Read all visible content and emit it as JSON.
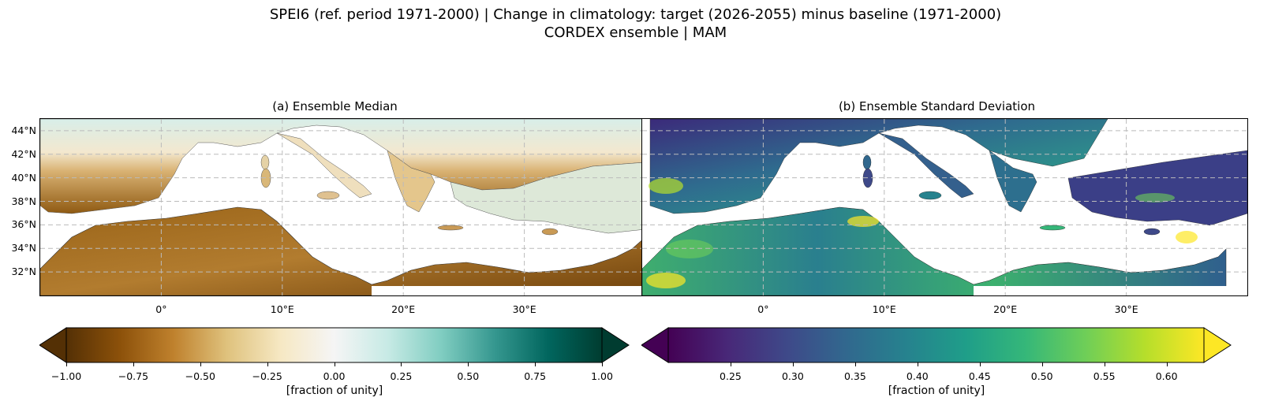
{
  "figure": {
    "title_line1": "SPEI6 (ref. period 1971-2000) | Change in climatology: target (2026-2055) minus baseline (1971-2000)",
    "title_line2": "CORDEX ensemble | MAM"
  },
  "panels": [
    {
      "title": "(a) Ensemble Median",
      "colormap": "BrBG",
      "colorbar": {
        "ticks": [
          "−1.00",
          "−0.75",
          "−0.50",
          "−0.25",
          "0.00",
          "0.25",
          "0.50",
          "0.75",
          "1.00"
        ],
        "range": [
          -1.0,
          1.0
        ],
        "extend": "both",
        "label": "[fraction of unity]"
      }
    },
    {
      "title": "(b) Ensemble Standard Deviation",
      "colormap": "viridis",
      "colorbar": {
        "ticks": [
          "0.25",
          "0.30",
          "0.35",
          "0.40",
          "0.45",
          "0.50",
          "0.55",
          "0.60"
        ],
        "range": [
          0.2,
          0.63
        ],
        "extend": "both",
        "label": "[fraction of unity]"
      }
    }
  ],
  "map": {
    "lat_labels": [
      "44°N",
      "42°N",
      "40°N",
      "38°N",
      "36°N",
      "34°N",
      "32°N"
    ],
    "lon_labels": [
      "0°",
      "10°E",
      "20°E",
      "30°E"
    ],
    "extent": {
      "lon": [
        -10,
        40
      ],
      "lat": [
        30,
        45
      ]
    },
    "gridlines": true
  },
  "colors": {
    "brbg": [
      "#543005",
      "#8c510a",
      "#bf812d",
      "#dfc27d",
      "#f6e8c3",
      "#f5f5f5",
      "#c7eae5",
      "#80cdc1",
      "#35978f",
      "#01665e",
      "#003c30"
    ],
    "viridis": [
      "#440154",
      "#482878",
      "#3e4989",
      "#31688e",
      "#26828e",
      "#1f9e89",
      "#35b779",
      "#6ece58",
      "#b5de2b",
      "#fde725"
    ]
  }
}
